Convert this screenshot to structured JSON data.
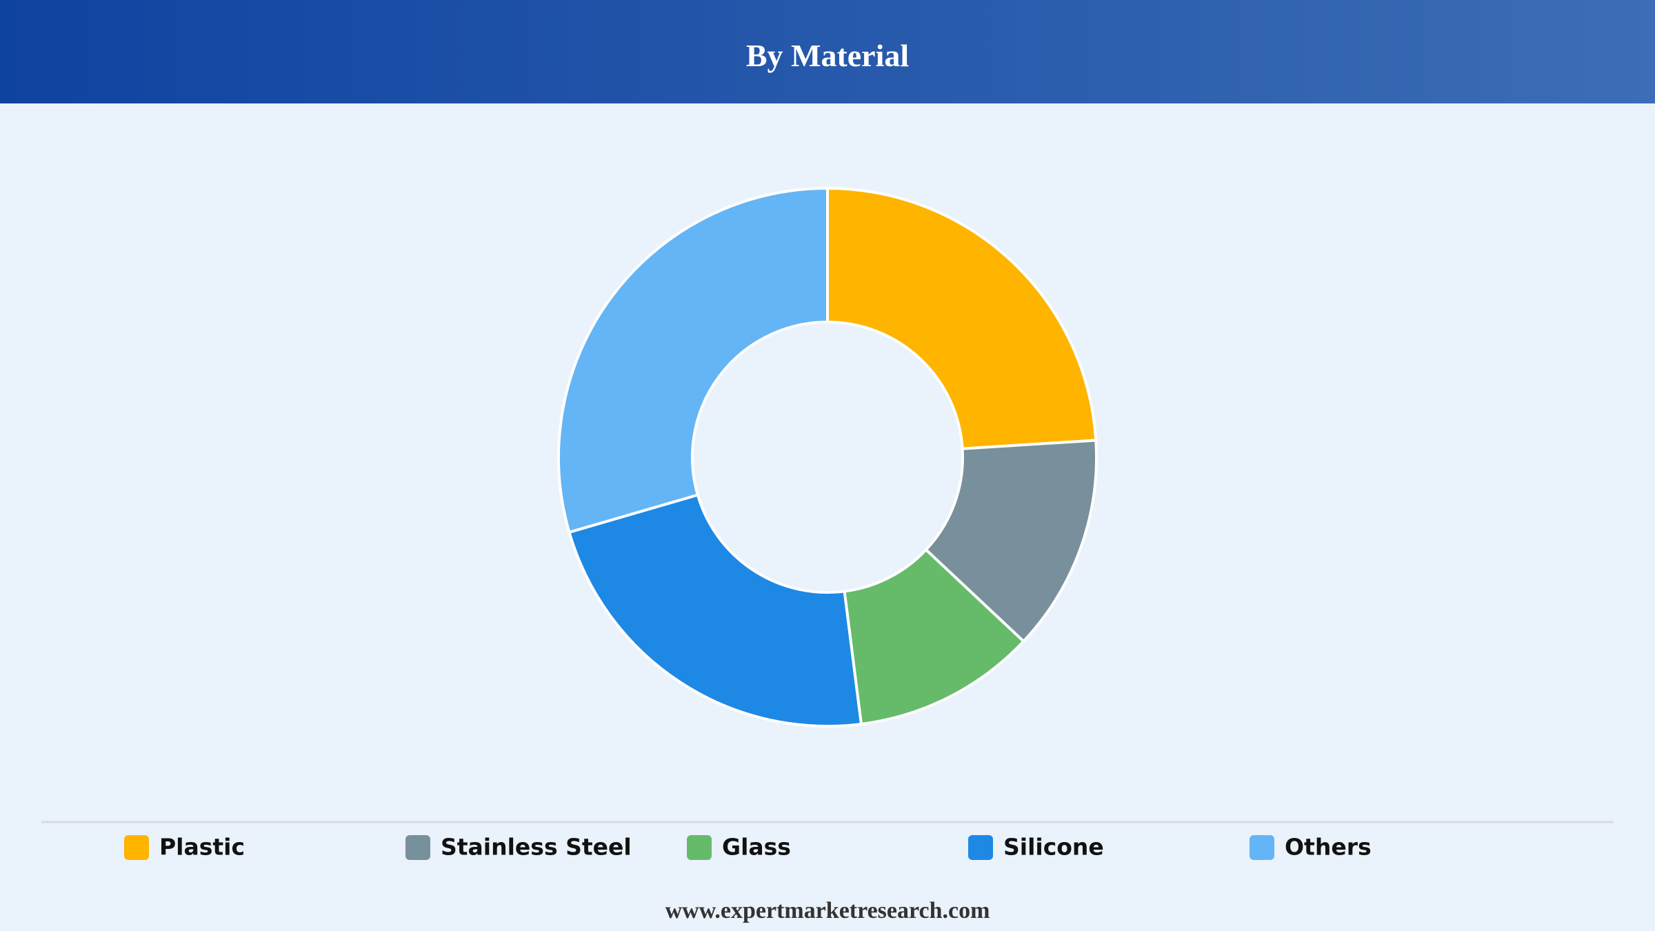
{
  "chart_data": {
    "type": "donut",
    "title": "By Material",
    "categories": [
      "Plastic",
      "Stainless Steel",
      "Glass",
      "Silicone",
      "Others"
    ],
    "values": [
      24,
      13,
      11,
      22.5,
      29.5
    ],
    "colors": [
      "#ffb400",
      "#78909c",
      "#66bb6a",
      "#1e88e5",
      "#64b5f6"
    ],
    "source": "www.expertmarketresearch.com"
  }
}
